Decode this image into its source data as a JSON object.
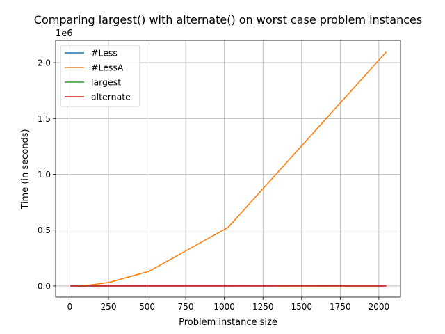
{
  "chart_data": {
    "type": "line",
    "title": "Comparing largest() with alternate() on worst case problem instances",
    "xlabel": "Problem instance size",
    "ylabel": "Time (in seconds)",
    "y_offset_label": "1e6",
    "y_scale": 1000000,
    "xlim": [
      -92,
      2140
    ],
    "ylim": [
      -100000,
      2200000
    ],
    "x_ticks": [
      0,
      250,
      500,
      750,
      1000,
      1250,
      1500,
      1750,
      2000
    ],
    "x_tick_labels": [
      "0",
      "250",
      "500",
      "750",
      "1000",
      "1250",
      "1500",
      "1750",
      "2000"
    ],
    "y_ticks": [
      0,
      500000,
      1000000,
      1500000,
      2000000
    ],
    "y_tick_labels": [
      "0.0",
      "0.5",
      "1.0",
      "1.5",
      "2.0"
    ],
    "grid": true,
    "legend_position": "top-left",
    "x": [
      4,
      8,
      16,
      32,
      64,
      128,
      256,
      512,
      1024,
      2048
    ],
    "series": [
      {
        "name": "#Less",
        "color": "#1f77b4",
        "values": [
          5,
          10,
          20,
          40,
          80,
          160,
          320,
          640,
          1280,
          2560
        ]
      },
      {
        "name": "#LessA",
        "color": "#ff7f0e",
        "values": [
          8,
          32,
          128,
          512,
          2048,
          8192,
          32768,
          131072,
          524288,
          2097152
        ]
      },
      {
        "name": "largest",
        "color": "#2ca02c",
        "values": [
          0,
          0,
          0,
          0,
          0,
          0,
          0,
          0,
          0,
          0
        ]
      },
      {
        "name": "alternate",
        "color": "#d62728",
        "values": [
          0,
          0,
          0,
          0,
          0,
          0,
          0,
          0,
          0,
          0
        ]
      }
    ]
  }
}
